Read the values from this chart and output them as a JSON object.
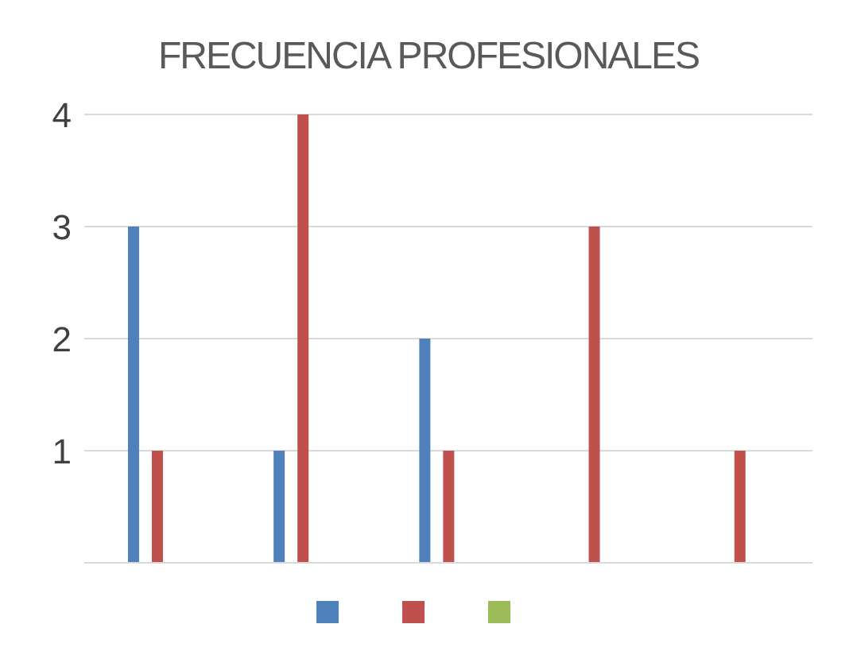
{
  "chart_data": {
    "type": "bar",
    "title": "FRECUENCIA PROFESIONALES",
    "categories": [
      null,
      null,
      null,
      null,
      null
    ],
    "series": [
      {
        "color": "#4f81bd",
        "values": [
          3,
          1,
          2,
          null,
          null
        ]
      },
      {
        "color": "#c0504d",
        "values": [
          1,
          4,
          1,
          3,
          1
        ]
      },
      {
        "color": "#9bbb59",
        "values": [
          null,
          null,
          null,
          null,
          null
        ]
      }
    ],
    "ylim": [
      0,
      4
    ],
    "yticks": [
      {
        "value": 0,
        "label": null
      },
      1,
      2,
      3,
      4
    ],
    "grid": "y"
  }
}
